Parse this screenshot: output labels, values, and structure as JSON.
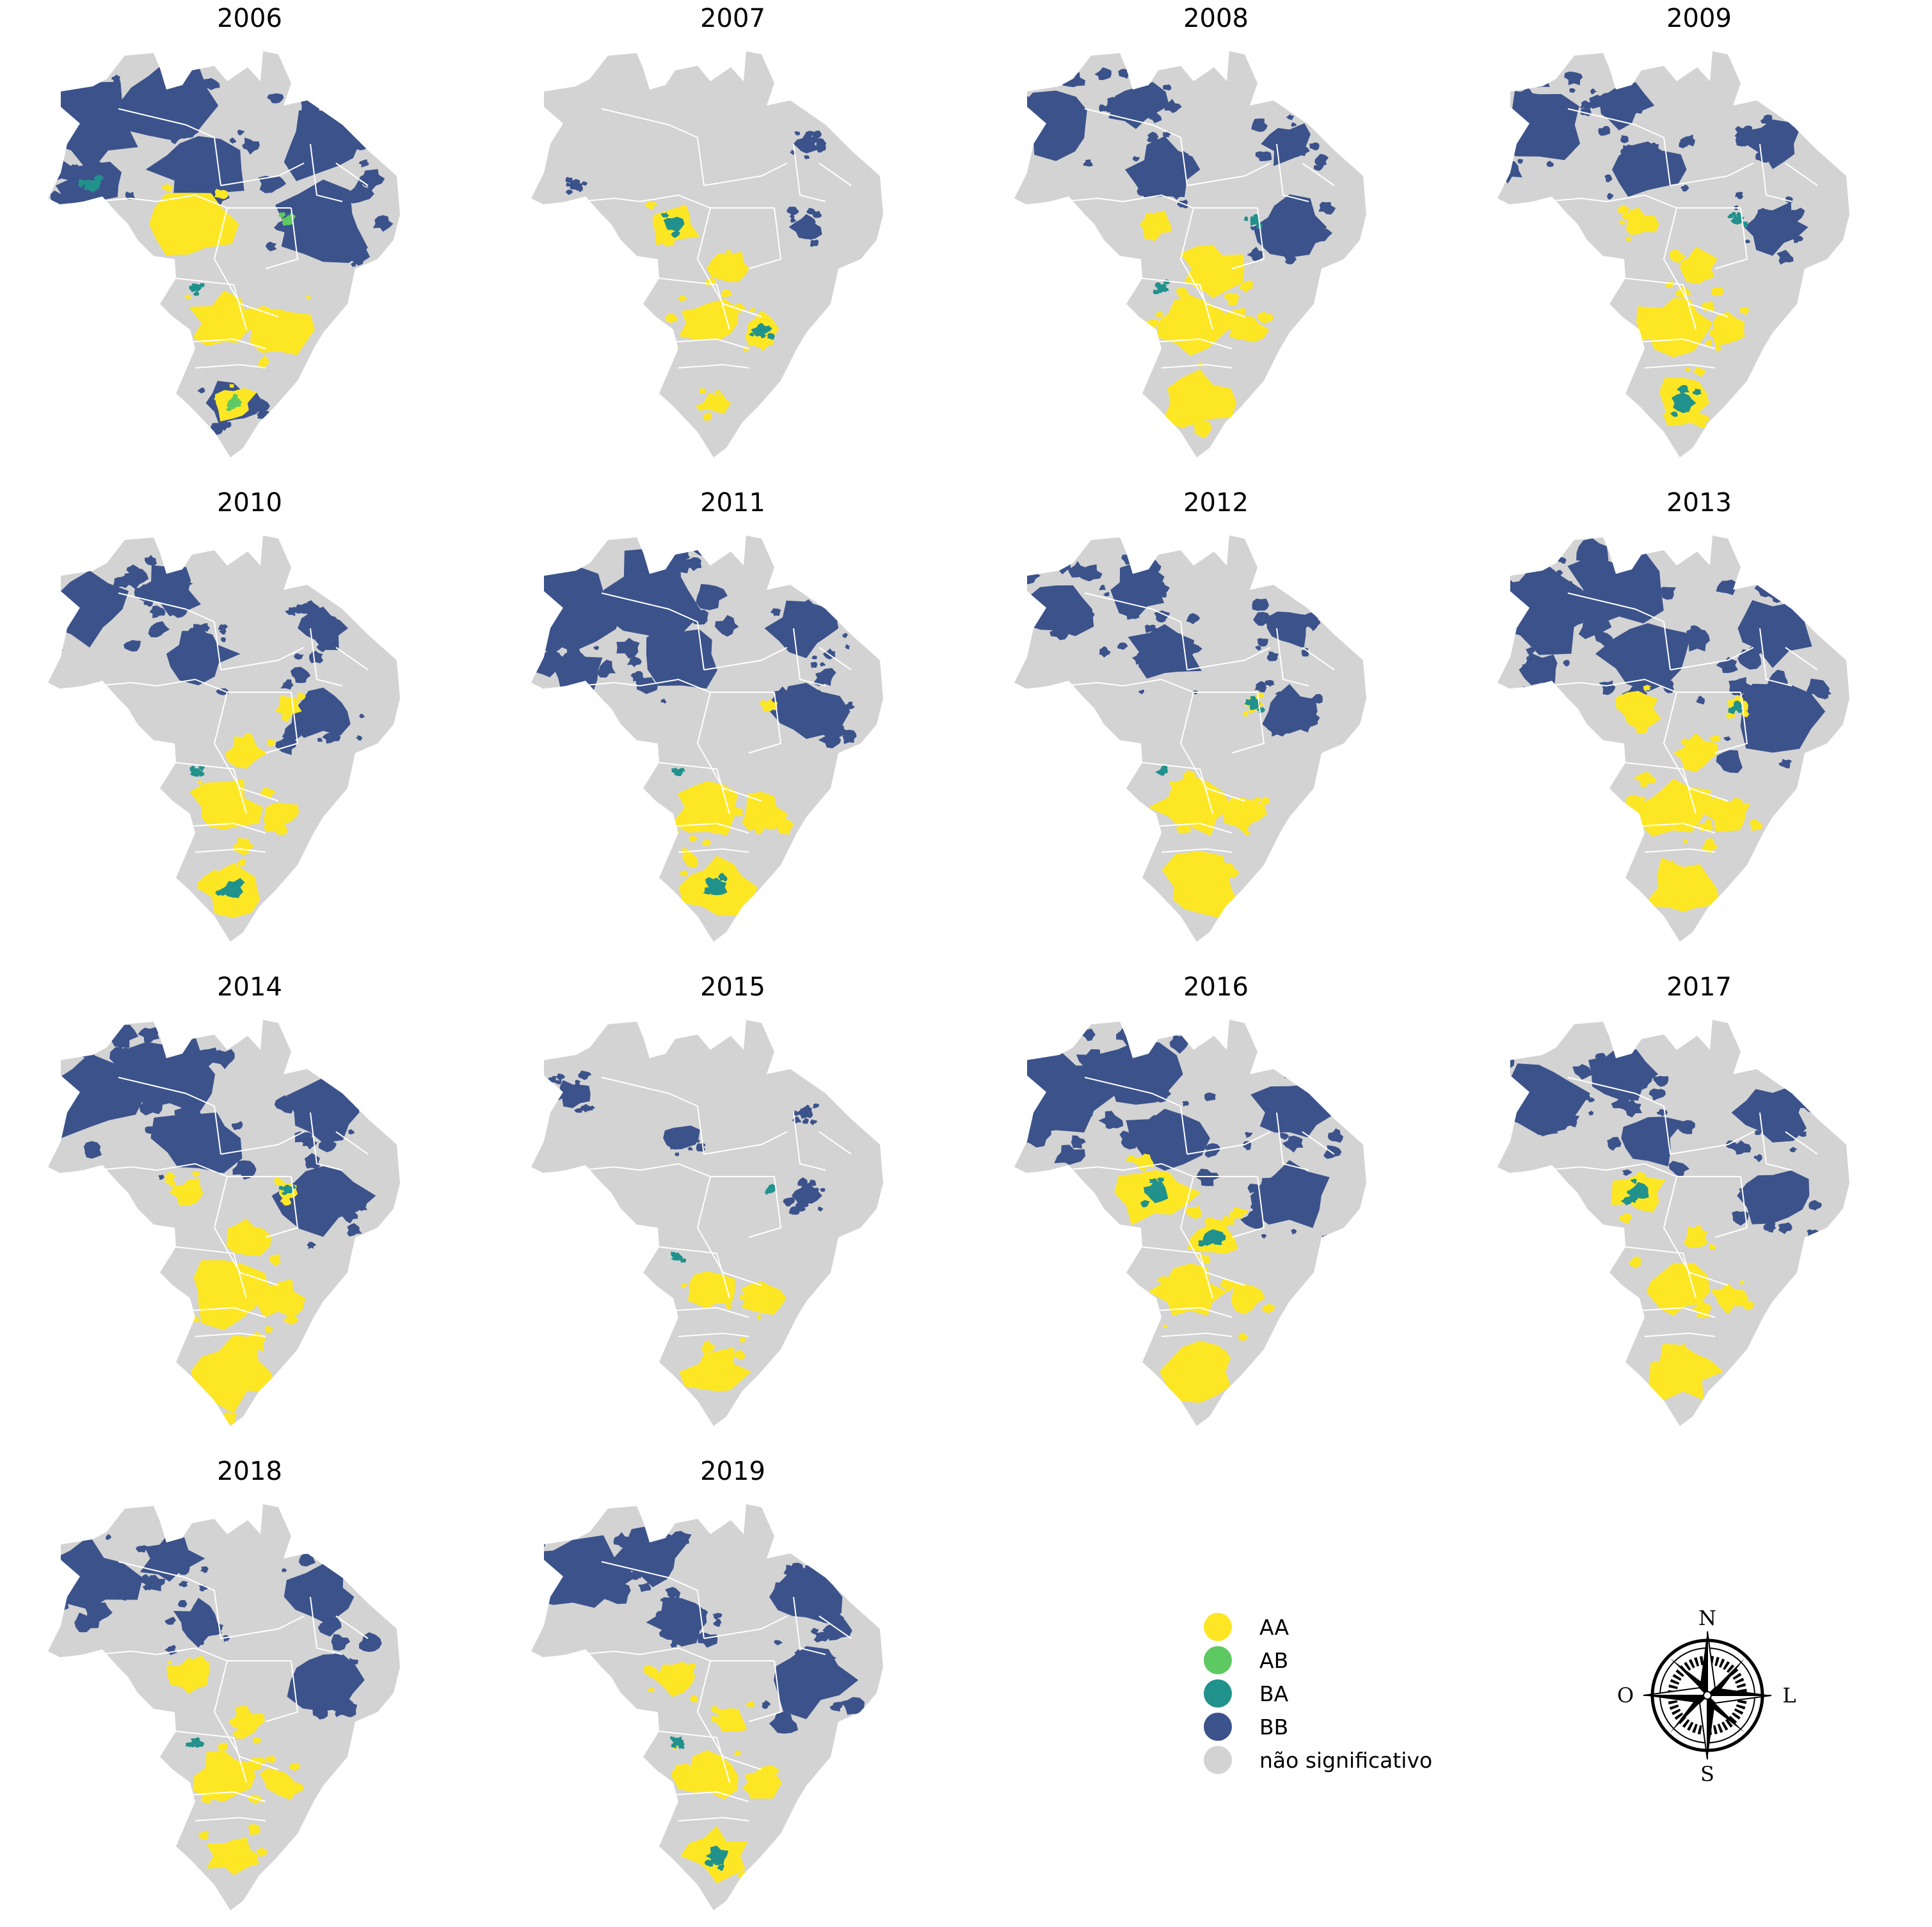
{
  "figure": {
    "panels": [
      {
        "year": "2006",
        "hotspots": [
          {
            "cls": "BB",
            "region": "nw",
            "size": 1.0
          },
          {
            "cls": "BB",
            "region": "n",
            "size": 1.0
          },
          {
            "cls": "BB",
            "region": "ne",
            "size": 1.0
          },
          {
            "cls": "BB",
            "region": "w",
            "size": 0.9
          },
          {
            "cls": "BB",
            "region": "nc",
            "size": 1.0
          },
          {
            "cls": "BB",
            "region": "e",
            "size": 1.0
          },
          {
            "cls": "BB",
            "region": "s",
            "size": 0.6
          },
          {
            "cls": "AA",
            "region": "cw",
            "size": 1.0
          },
          {
            "cls": "AA",
            "region": "se",
            "size": 0.9
          },
          {
            "cls": "AA",
            "region": "sw",
            "size": 0.8
          },
          {
            "cls": "AA",
            "region": "s",
            "size": 0.5
          },
          {
            "cls": "BA",
            "region": "w",
            "size": 0.3
          },
          {
            "cls": "BA",
            "region": "cs",
            "size": 0.3
          },
          {
            "cls": "AB",
            "region": "ce",
            "size": 0.3
          },
          {
            "cls": "AB",
            "region": "s",
            "size": 0.2
          }
        ]
      },
      {
        "year": "2007",
        "hotspots": [
          {
            "cls": "AA",
            "region": "cw",
            "size": 0.6
          },
          {
            "cls": "AA",
            "region": "c",
            "size": 0.6
          },
          {
            "cls": "AA",
            "region": "sw",
            "size": 0.7
          },
          {
            "cls": "AA",
            "region": "se",
            "size": 0.6
          },
          {
            "cls": "AA",
            "region": "s",
            "size": 0.3
          },
          {
            "cls": "BA",
            "region": "cw",
            "size": 0.25
          },
          {
            "cls": "BA",
            "region": "se",
            "size": 0.25
          },
          {
            "cls": "BB",
            "region": "ne",
            "size": 0.3
          },
          {
            "cls": "BB",
            "region": "e",
            "size": 0.3
          },
          {
            "cls": "BB",
            "region": "w",
            "size": 0.2
          }
        ]
      },
      {
        "year": "2008",
        "hotspots": [
          {
            "cls": "BB",
            "region": "nw",
            "size": 0.7
          },
          {
            "cls": "BB",
            "region": "n",
            "size": 0.6
          },
          {
            "cls": "BB",
            "region": "nc",
            "size": 0.8
          },
          {
            "cls": "BB",
            "region": "e",
            "size": 0.7
          },
          {
            "cls": "BB",
            "region": "ne",
            "size": 0.6
          },
          {
            "cls": "AA",
            "region": "c",
            "size": 0.9
          },
          {
            "cls": "AA",
            "region": "cw",
            "size": 0.4
          },
          {
            "cls": "AA",
            "region": "sw",
            "size": 0.9
          },
          {
            "cls": "AA",
            "region": "se",
            "size": 0.6
          },
          {
            "cls": "AA",
            "region": "s",
            "size": 0.8
          },
          {
            "cls": "BA",
            "region": "cs",
            "size": 0.3
          },
          {
            "cls": "BA",
            "region": "ce",
            "size": 0.3
          }
        ]
      },
      {
        "year": "2009",
        "hotspots": [
          {
            "cls": "BB",
            "region": "nw",
            "size": 0.8
          },
          {
            "cls": "BB",
            "region": "n",
            "size": 0.6
          },
          {
            "cls": "BB",
            "region": "nc",
            "size": 0.8
          },
          {
            "cls": "BB",
            "region": "e",
            "size": 0.6
          },
          {
            "cls": "BB",
            "region": "ne",
            "size": 0.6
          },
          {
            "cls": "AA",
            "region": "cw",
            "size": 0.4
          },
          {
            "cls": "AA",
            "region": "c",
            "size": 0.7
          },
          {
            "cls": "AA",
            "region": "sw",
            "size": 0.8
          },
          {
            "cls": "AA",
            "region": "se",
            "size": 0.6
          },
          {
            "cls": "AA",
            "region": "s",
            "size": 0.7
          },
          {
            "cls": "BA",
            "region": "ce",
            "size": 0.3
          },
          {
            "cls": "BA",
            "region": "s",
            "size": 0.3
          }
        ]
      },
      {
        "year": "2010",
        "hotspots": [
          {
            "cls": "BB",
            "region": "nw",
            "size": 0.7
          },
          {
            "cls": "BB",
            "region": "n",
            "size": 0.6
          },
          {
            "cls": "BB",
            "region": "nc",
            "size": 0.8
          },
          {
            "cls": "BB",
            "region": "e",
            "size": 0.7
          },
          {
            "cls": "BB",
            "region": "ne",
            "size": 0.6
          },
          {
            "cls": "AA",
            "region": "ce",
            "size": 0.6
          },
          {
            "cls": "AA",
            "region": "c",
            "size": 0.6
          },
          {
            "cls": "AA",
            "region": "sw",
            "size": 0.8
          },
          {
            "cls": "AA",
            "region": "se",
            "size": 0.6
          },
          {
            "cls": "AA",
            "region": "s",
            "size": 0.8
          },
          {
            "cls": "BA",
            "region": "cs",
            "size": 0.3
          },
          {
            "cls": "BA",
            "region": "s",
            "size": 0.25
          }
        ]
      },
      {
        "year": "2011",
        "hotspots": [
          {
            "cls": "BB",
            "region": "nw",
            "size": 1.0
          },
          {
            "cls": "BB",
            "region": "n",
            "size": 1.0
          },
          {
            "cls": "BB",
            "region": "nc",
            "size": 1.0
          },
          {
            "cls": "BB",
            "region": "w",
            "size": 0.8
          },
          {
            "cls": "BB",
            "region": "e",
            "size": 0.8
          },
          {
            "cls": "BB",
            "region": "ne",
            "size": 0.8
          },
          {
            "cls": "AA",
            "region": "ce",
            "size": 0.3
          },
          {
            "cls": "AA",
            "region": "sw",
            "size": 0.8
          },
          {
            "cls": "AA",
            "region": "se",
            "size": 0.7
          },
          {
            "cls": "AA",
            "region": "s",
            "size": 0.8
          },
          {
            "cls": "BA",
            "region": "cs",
            "size": 0.25
          },
          {
            "cls": "BA",
            "region": "s",
            "size": 0.25
          }
        ]
      },
      {
        "year": "2012",
        "hotspots": [
          {
            "cls": "BB",
            "region": "nw",
            "size": 0.7
          },
          {
            "cls": "BB",
            "region": "n",
            "size": 0.6
          },
          {
            "cls": "BB",
            "region": "nc",
            "size": 0.8
          },
          {
            "cls": "BB",
            "region": "e",
            "size": 0.6
          },
          {
            "cls": "BB",
            "region": "ne",
            "size": 0.6
          },
          {
            "cls": "AA",
            "region": "ce",
            "size": 0.4
          },
          {
            "cls": "AA",
            "region": "sw",
            "size": 0.8
          },
          {
            "cls": "AA",
            "region": "se",
            "size": 0.6
          },
          {
            "cls": "AA",
            "region": "s",
            "size": 0.9
          },
          {
            "cls": "BA",
            "region": "ce",
            "size": 0.3
          },
          {
            "cls": "BA",
            "region": "cs",
            "size": 0.3
          }
        ]
      },
      {
        "year": "2013",
        "hotspots": [
          {
            "cls": "BB",
            "region": "nw",
            "size": 1.0
          },
          {
            "cls": "BB",
            "region": "n",
            "size": 1.0
          },
          {
            "cls": "BB",
            "region": "nc",
            "size": 1.0
          },
          {
            "cls": "BB",
            "region": "e",
            "size": 1.0
          },
          {
            "cls": "BB",
            "region": "ne",
            "size": 1.0
          },
          {
            "cls": "BB",
            "region": "w",
            "size": 0.6
          },
          {
            "cls": "AA",
            "region": "cw",
            "size": 0.5
          },
          {
            "cls": "AA",
            "region": "ce",
            "size": 0.5
          },
          {
            "cls": "AA",
            "region": "c",
            "size": 0.6
          },
          {
            "cls": "AA",
            "region": "sw",
            "size": 0.8
          },
          {
            "cls": "AA",
            "region": "se",
            "size": 0.7
          },
          {
            "cls": "AA",
            "region": "s",
            "size": 0.9
          },
          {
            "cls": "BA",
            "region": "ce",
            "size": 0.25
          }
        ]
      },
      {
        "year": "2014",
        "hotspots": [
          {
            "cls": "BB",
            "region": "nw",
            "size": 1.0
          },
          {
            "cls": "BB",
            "region": "n",
            "size": 1.0
          },
          {
            "cls": "BB",
            "region": "nc",
            "size": 1.0
          },
          {
            "cls": "BB",
            "region": "e",
            "size": 0.9
          },
          {
            "cls": "BB",
            "region": "ne",
            "size": 0.9
          },
          {
            "cls": "AA",
            "region": "cw",
            "size": 0.4
          },
          {
            "cls": "AA",
            "region": "ce",
            "size": 0.5
          },
          {
            "cls": "AA",
            "region": "c",
            "size": 0.7
          },
          {
            "cls": "AA",
            "region": "sw",
            "size": 0.9
          },
          {
            "cls": "AA",
            "region": "se",
            "size": 0.7
          },
          {
            "cls": "AA",
            "region": "s",
            "size": 1.0
          },
          {
            "cls": "BA",
            "region": "ce",
            "size": 0.25
          }
        ]
      },
      {
        "year": "2015",
        "hotspots": [
          {
            "cls": "BB",
            "region": "nw",
            "size": 0.3
          },
          {
            "cls": "BB",
            "region": "nc",
            "size": 0.4
          },
          {
            "cls": "BB",
            "region": "e",
            "size": 0.3
          },
          {
            "cls": "BB",
            "region": "ne",
            "size": 0.2
          },
          {
            "cls": "AA",
            "region": "sw",
            "size": 0.6
          },
          {
            "cls": "AA",
            "region": "se",
            "size": 0.6
          },
          {
            "cls": "AA",
            "region": "s",
            "size": 0.7
          },
          {
            "cls": "BA",
            "region": "cs",
            "size": 0.25
          },
          {
            "cls": "BA",
            "region": "ce",
            "size": 0.2
          }
        ]
      },
      {
        "year": "2016",
        "hotspots": [
          {
            "cls": "BB",
            "region": "nw",
            "size": 1.0
          },
          {
            "cls": "BB",
            "region": "n",
            "size": 0.9
          },
          {
            "cls": "BB",
            "region": "nc",
            "size": 0.9
          },
          {
            "cls": "BB",
            "region": "e",
            "size": 0.8
          },
          {
            "cls": "BB",
            "region": "ne",
            "size": 0.9
          },
          {
            "cls": "AA",
            "region": "cw",
            "size": 0.9
          },
          {
            "cls": "AA",
            "region": "c",
            "size": 0.7
          },
          {
            "cls": "AA",
            "region": "sw",
            "size": 0.8
          },
          {
            "cls": "AA",
            "region": "se",
            "size": 0.6
          },
          {
            "cls": "AA",
            "region": "s",
            "size": 0.8
          },
          {
            "cls": "BA",
            "region": "cw",
            "size": 0.3
          },
          {
            "cls": "BA",
            "region": "c",
            "size": 0.3
          }
        ]
      },
      {
        "year": "2017",
        "hotspots": [
          {
            "cls": "BB",
            "region": "nw",
            "size": 0.8
          },
          {
            "cls": "BB",
            "region": "n",
            "size": 0.7
          },
          {
            "cls": "BB",
            "region": "nc",
            "size": 0.8
          },
          {
            "cls": "BB",
            "region": "e",
            "size": 0.8
          },
          {
            "cls": "BB",
            "region": "ne",
            "size": 0.8
          },
          {
            "cls": "AA",
            "region": "cw",
            "size": 0.6
          },
          {
            "cls": "AA",
            "region": "c",
            "size": 0.4
          },
          {
            "cls": "AA",
            "region": "sw",
            "size": 0.8
          },
          {
            "cls": "AA",
            "region": "se",
            "size": 0.5
          },
          {
            "cls": "AA",
            "region": "s",
            "size": 0.8
          },
          {
            "cls": "BA",
            "region": "cw",
            "size": 0.25
          }
        ]
      },
      {
        "year": "2018",
        "hotspots": [
          {
            "cls": "BB",
            "region": "nw",
            "size": 0.8
          },
          {
            "cls": "BB",
            "region": "n",
            "size": 0.6
          },
          {
            "cls": "BB",
            "region": "nc",
            "size": 0.6
          },
          {
            "cls": "BB",
            "region": "e",
            "size": 0.8
          },
          {
            "cls": "BB",
            "region": "ne",
            "size": 0.8
          },
          {
            "cls": "AA",
            "region": "cw",
            "size": 0.5
          },
          {
            "cls": "AA",
            "region": "c",
            "size": 0.5
          },
          {
            "cls": "AA",
            "region": "sw",
            "size": 0.7
          },
          {
            "cls": "AA",
            "region": "se",
            "size": 0.6
          },
          {
            "cls": "AA",
            "region": "s",
            "size": 0.6
          },
          {
            "cls": "BA",
            "region": "cs",
            "size": 0.25
          }
        ]
      },
      {
        "year": "2019",
        "hotspots": [
          {
            "cls": "BB",
            "region": "nw",
            "size": 0.9
          },
          {
            "cls": "BB",
            "region": "n",
            "size": 0.7
          },
          {
            "cls": "BB",
            "region": "nc",
            "size": 0.7
          },
          {
            "cls": "BB",
            "region": "e",
            "size": 0.9
          },
          {
            "cls": "BB",
            "region": "ne",
            "size": 0.8
          },
          {
            "cls": "AA",
            "region": "cw",
            "size": 0.5
          },
          {
            "cls": "AA",
            "region": "c",
            "size": 0.5
          },
          {
            "cls": "AA",
            "region": "sw",
            "size": 0.7
          },
          {
            "cls": "AA",
            "region": "se",
            "size": 0.6
          },
          {
            "cls": "AA",
            "region": "s",
            "size": 0.7
          },
          {
            "cls": "BA",
            "region": "cs",
            "size": 0.3
          },
          {
            "cls": "BA",
            "region": "s",
            "size": 0.25
          }
        ]
      }
    ]
  },
  "legend": {
    "items": [
      {
        "key": "AA",
        "label": "AA",
        "color": "#fde725"
      },
      {
        "key": "AB",
        "label": "AB",
        "color": "#5ec962"
      },
      {
        "key": "BA",
        "label": "BA",
        "color": "#21918c"
      },
      {
        "key": "BB",
        "label": "BB",
        "color": "#3b528b"
      },
      {
        "key": "NS",
        "label": "não significativo",
        "color": "#d3d3d3"
      }
    ]
  },
  "compass": {
    "north": "N",
    "south": "S",
    "east": "L",
    "west": "O"
  },
  "colors": {
    "base_map": "#d3d3d3",
    "border": "#ffffff"
  }
}
